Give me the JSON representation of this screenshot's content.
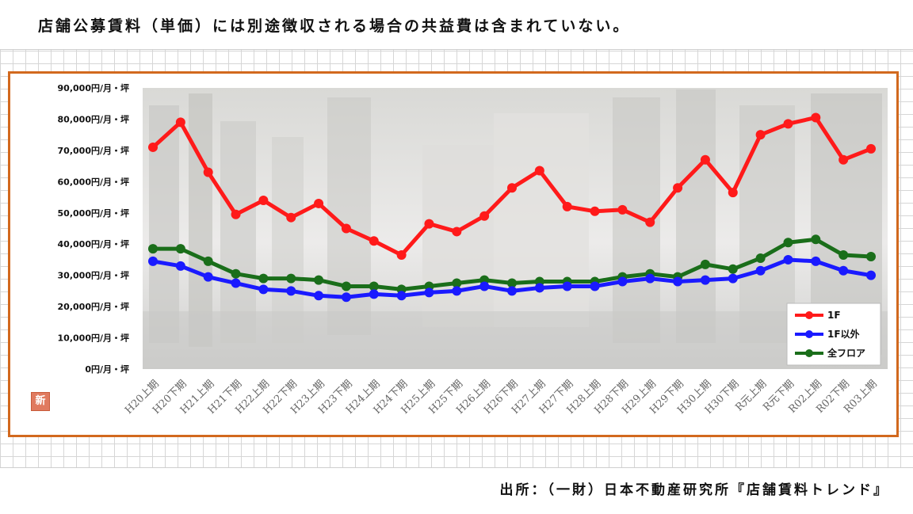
{
  "note": "店舗公募賃料（単価）には別途徴収される場合の共益費は含まれていない。",
  "source": "出所：（一財）日本不動産研究所『店舗賃料トレンド』",
  "badge": "新",
  "chart_data": {
    "type": "line",
    "categories": [
      "H20上期",
      "H20下期",
      "H21上期",
      "H21下期",
      "H22上期",
      "H22下期",
      "H23上期",
      "H23下期",
      "H24上期",
      "H24下期",
      "H25上期",
      "H25下期",
      "H26上期",
      "H26下期",
      "H27上期",
      "H27下期",
      "H28上期",
      "H28下期",
      "H29上期",
      "H29下期",
      "H30上期",
      "H30下期",
      "R元上期",
      "R元下期",
      "R02上期",
      "R02下期",
      "R03上期"
    ],
    "y_ticks": [
      "0円/月・坪",
      "10,000円/月・坪",
      "20,000円/月・坪",
      "30,000円/月・坪",
      "40,000円/月・坪",
      "50,000円/月・坪",
      "60,000円/月・坪",
      "70,000円/月・坪",
      "80,000円/月・坪",
      "90,000円/月・坪"
    ],
    "ylim": [
      0,
      90000
    ],
    "legend_position": "bottom-right",
    "series": [
      {
        "name": "1F",
        "color": "#ff1a1a",
        "values": [
          71000,
          79000,
          63000,
          49500,
          54000,
          48500,
          53000,
          45000,
          41000,
          36500,
          46500,
          44000,
          49000,
          58000,
          63500,
          52000,
          50500,
          51000,
          47000,
          58000,
          67000,
          56500,
          75000,
          78500,
          80500,
          67000,
          70500
        ]
      },
      {
        "name": "1F以外",
        "color": "#1a1aff",
        "values": [
          34500,
          33000,
          29500,
          27500,
          25500,
          25000,
          23500,
          23000,
          24000,
          23500,
          24500,
          25000,
          26500,
          25000,
          26000,
          26500,
          26500,
          28000,
          29000,
          28000,
          28500,
          29000,
          31500,
          35000,
          34500,
          31500,
          30000
        ]
      },
      {
        "name": "全フロア",
        "color": "#1a6e1a",
        "values": [
          38500,
          38500,
          34500,
          30500,
          29000,
          29000,
          28500,
          26500,
          26500,
          25500,
          26500,
          27500,
          28500,
          27500,
          28000,
          28000,
          28000,
          29500,
          30500,
          29500,
          33500,
          32000,
          35500,
          40500,
          41500,
          36500,
          36000
        ]
      }
    ]
  }
}
